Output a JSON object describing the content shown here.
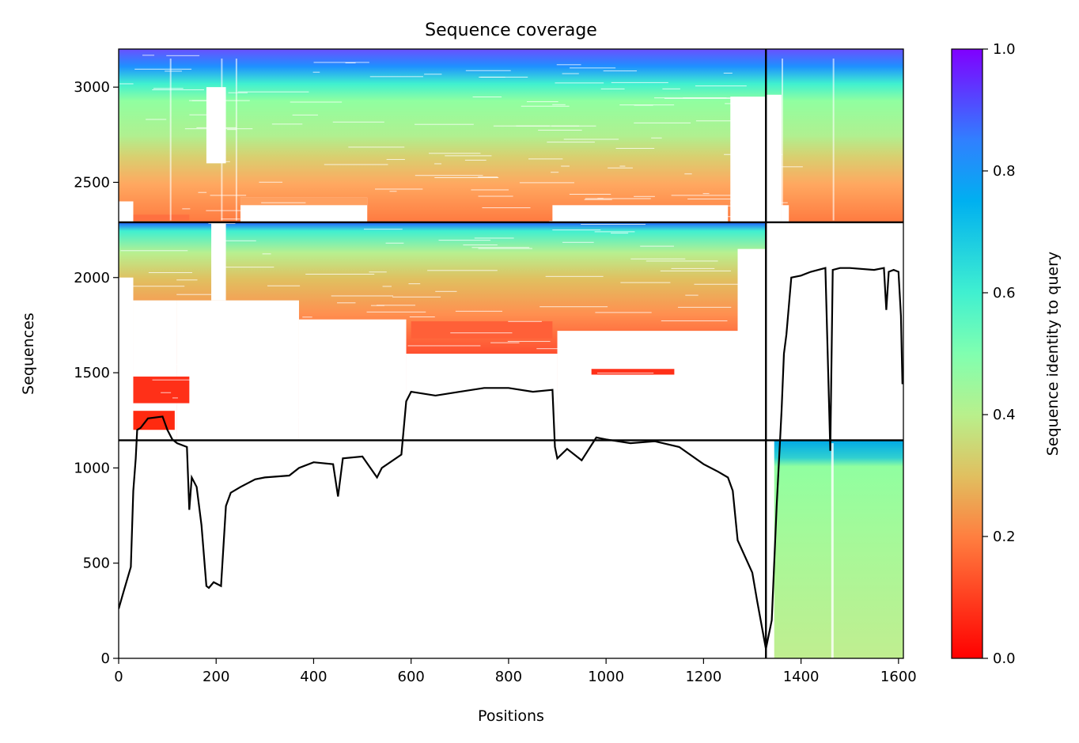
{
  "chart_data": {
    "type": "heatmap",
    "title": "Sequence coverage",
    "xlabel": "Positions",
    "ylabel": "Sequences",
    "xlim": [
      0,
      1610
    ],
    "ylim": [
      0,
      3200
    ],
    "xticks": [
      0,
      200,
      400,
      600,
      800,
      1000,
      1200,
      1400,
      1600
    ],
    "yticks": [
      0,
      500,
      1000,
      1500,
      2000,
      2500,
      3000
    ],
    "colorbar": {
      "label": "Sequence identity to query",
      "range": [
        0,
        1
      ],
      "ticks": [
        "0.0",
        "0.2",
        "0.4",
        "0.6",
        "0.8",
        "1.0"
      ],
      "colormap": "rainbow_r"
    },
    "chain_boundaries": {
      "x": [
        1328
      ],
      "y": [
        1145,
        2290
      ]
    },
    "blocks": [
      {
        "name": "block-11-identity-gradient",
        "x": [
          0,
          1328
        ],
        "y": [
          2290,
          3200
        ]
      },
      {
        "name": "block-12-identity-gradient",
        "x": [
          1328,
          1610
        ],
        "y": [
          2290,
          3200
        ]
      },
      {
        "name": "block-21-identity-gradient",
        "x": [
          0,
          1328
        ],
        "y": [
          1145,
          2290
        ]
      },
      {
        "name": "block-32-identity-gradient",
        "x": [
          1328,
          1610
        ],
        "y": [
          0,
          1145
        ]
      }
    ],
    "coverage_line": {
      "color": "#000000",
      "x": [
        0,
        10,
        25,
        30,
        35,
        38,
        45,
        60,
        90,
        100,
        110,
        120,
        140,
        145,
        150,
        160,
        170,
        180,
        185,
        195,
        210,
        220,
        230,
        250,
        280,
        300,
        350,
        370,
        400,
        440,
        450,
        460,
        500,
        530,
        540,
        580,
        590,
        600,
        650,
        700,
        750,
        800,
        850,
        890,
        895,
        900,
        920,
        950,
        980,
        1000,
        1050,
        1100,
        1150,
        1200,
        1230,
        1250,
        1260,
        1270,
        1300,
        1310,
        1328,
        1340,
        1350,
        1360,
        1365,
        1370,
        1380,
        1400,
        1420,
        1450,
        1460,
        1465,
        1480,
        1500,
        1550,
        1570,
        1575,
        1580,
        1590,
        1600,
        1605,
        1608
      ],
      "y": [
        260,
        350,
        480,
        880,
        1050,
        1200,
        1210,
        1260,
        1270,
        1200,
        1150,
        1130,
        1110,
        780,
        950,
        900,
        700,
        380,
        370,
        400,
        380,
        800,
        870,
        900,
        940,
        950,
        960,
        1000,
        1030,
        1020,
        850,
        1050,
        1060,
        950,
        1000,
        1070,
        1350,
        1400,
        1380,
        1400,
        1420,
        1420,
        1400,
        1410,
        1110,
        1050,
        1100,
        1040,
        1160,
        1150,
        1130,
        1140,
        1110,
        1020,
        980,
        950,
        880,
        620,
        450,
        300,
        50,
        200,
        800,
        1300,
        1600,
        1700,
        2000,
        2010,
        2030,
        2050,
        1090,
        2040,
        2050,
        2050,
        2040,
        2050,
        1830,
        2030,
        2040,
        2030,
        1800,
        1440
      ]
    }
  }
}
